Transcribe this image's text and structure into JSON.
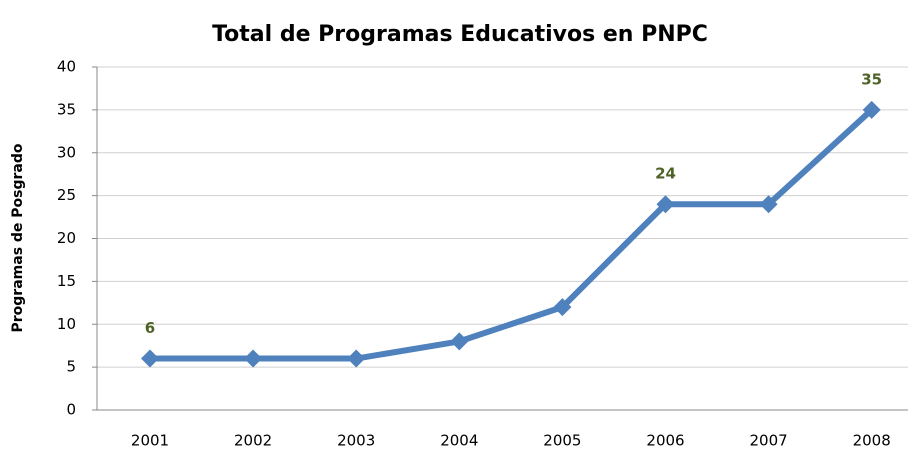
{
  "chart_data": {
    "type": "line",
    "title": "Total de Programas Educativos en PNPC",
    "y_label": "Programas de Posgrado",
    "categories": [
      "2001",
      "2002",
      "2003",
      "2004",
      "2005",
      "2006",
      "2007",
      "2008"
    ],
    "values": [
      6,
      6,
      6,
      8,
      12,
      24,
      24,
      35
    ],
    "value_labels": [
      "6",
      null,
      null,
      null,
      null,
      "24",
      null,
      "35"
    ],
    "color": "#4f81bd",
    "label_color": "#4f6228",
    "ylim": [
      0,
      40
    ],
    "yticks": [
      0,
      5,
      10,
      15,
      20,
      25,
      30,
      35,
      40
    ],
    "grid": true
  }
}
